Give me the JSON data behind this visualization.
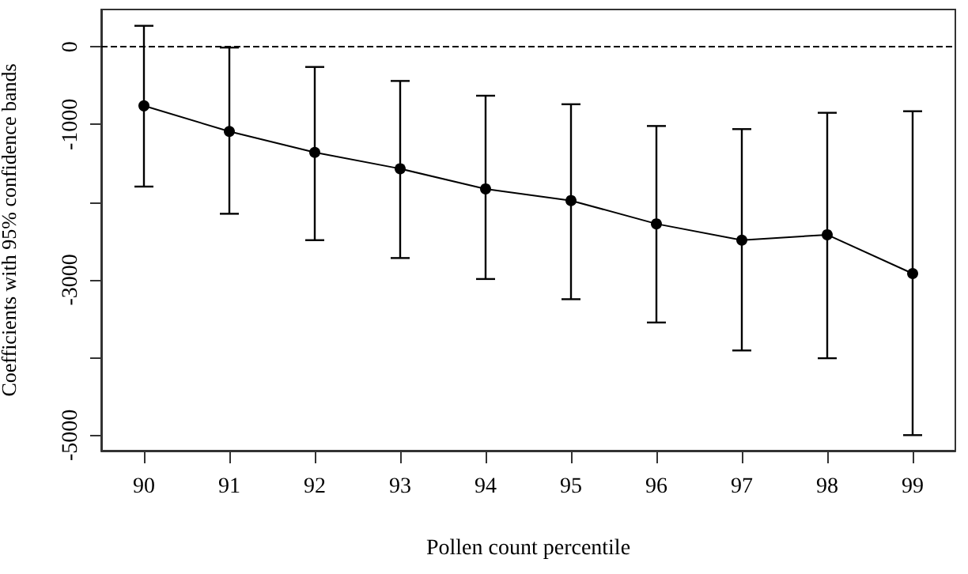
{
  "chart_data": {
    "type": "line",
    "xlabel": "Pollen count percentile",
    "ylabel": "Coefficients with 95% confidence bands",
    "categories": [
      "90",
      "91",
      "92",
      "93",
      "94",
      "95",
      "96",
      "97",
      "98",
      "99"
    ],
    "series": [
      {
        "color": "#000000",
        "values": [
          -760,
          -1090,
          -1360,
          -1570,
          -1830,
          -1980,
          -2280,
          -2490,
          -2420,
          -2920
        ],
        "errors": [
          [
            -1800,
            270
          ],
          [
            -2150,
            -10
          ],
          [
            -2490,
            -260
          ],
          [
            -2720,
            -440
          ],
          [
            -2990,
            -630
          ],
          [
            -3250,
            -740
          ],
          [
            -3550,
            -1020
          ],
          [
            -3910,
            -1060
          ],
          [
            -4010,
            -850
          ],
          [
            -5000,
            -830
          ]
        ]
      }
    ],
    "ylim": [
      -5200,
      480
    ],
    "yticks": [
      0,
      -1000,
      {
        "value": -2000,
        "label": null
      },
      -3000,
      {
        "value": -4000,
        "label": null
      },
      -5000
    ],
    "ref_lines": [
      {
        "axis": "y",
        "value": 0,
        "line_style": "dashed",
        "color": "#000000"
      }
    ],
    "marker": "circle",
    "line_style": "solid"
  }
}
